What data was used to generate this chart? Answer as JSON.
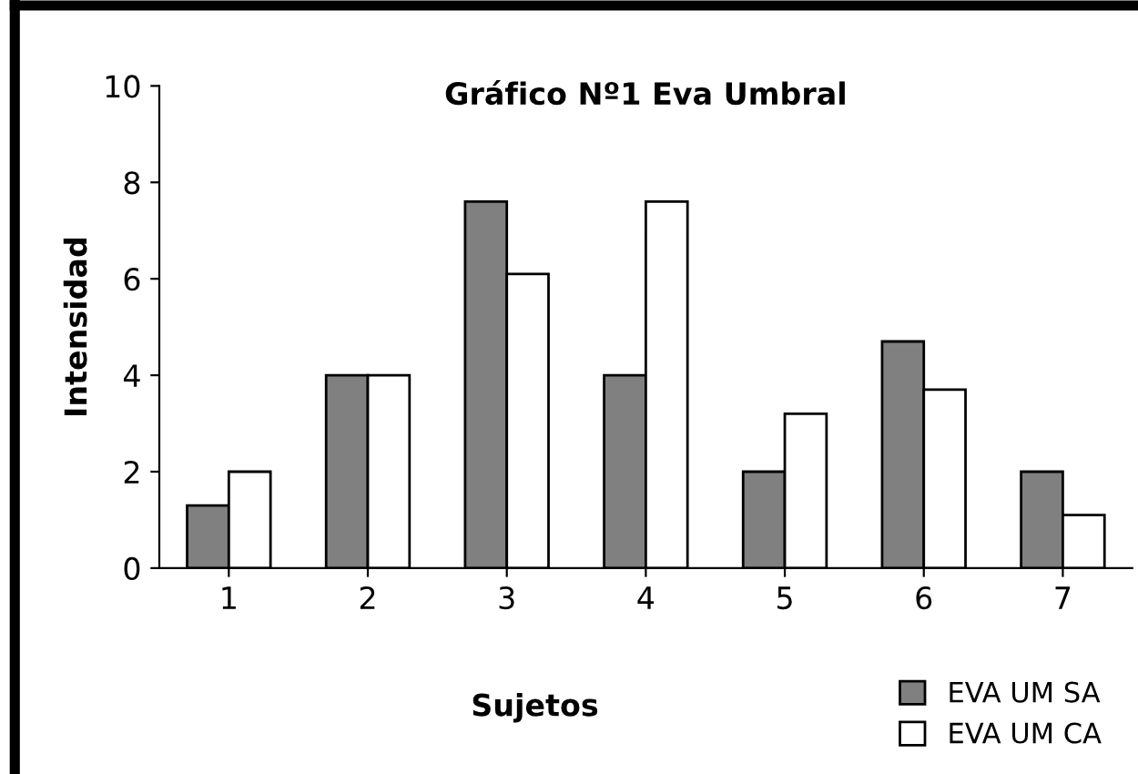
{
  "chart_data": {
    "type": "bar",
    "title": "Gráfico Nº1 Eva Umbral",
    "xlabel": "Sujetos",
    "ylabel": "Intensidad",
    "categories": [
      "1",
      "2",
      "3",
      "4",
      "5",
      "6",
      "7"
    ],
    "series": [
      {
        "name": "EVA UM SA",
        "color": "#808080",
        "values": [
          1.3,
          4,
          7.6,
          4,
          2,
          4.7,
          2
        ]
      },
      {
        "name": "EVA UM CA",
        "color": "#ffffff",
        "values": [
          2,
          4,
          6.1,
          7.6,
          3.2,
          3.7,
          1.1
        ]
      }
    ],
    "ylim": [
      0,
      10
    ],
    "yticks": [
      0,
      2,
      4,
      6,
      8,
      10
    ],
    "grid": false,
    "legend": "bottom right"
  }
}
